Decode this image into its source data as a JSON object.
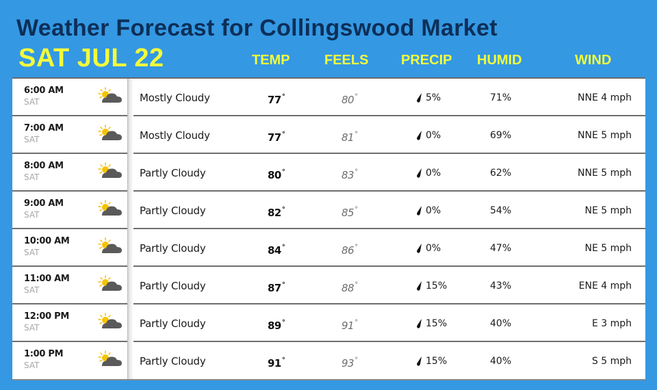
{
  "header": {
    "title": "Weather Forecast for Collingswood Market",
    "date": "SAT JUL 22"
  },
  "columns": {
    "temp": "TEMP",
    "feels": "FEELS",
    "precip": "PRECIP",
    "humid": "HUMID",
    "wind": "WIND"
  },
  "colors": {
    "background": "#3498e3",
    "title": "#0d2f57",
    "accent_yellow": "#f2fb3c"
  },
  "icons": {
    "mostly_cloudy": "mostly-cloudy-icon",
    "partly_cloudy": "partly-cloudy-icon",
    "precip": "raindrop-icon"
  },
  "rows": [
    {
      "time": "6:00 AM",
      "day": "SAT",
      "icon": "mostly-cloudy",
      "condition": "Mostly Cloudy",
      "temp": "77",
      "feels": "80",
      "precip": "5%",
      "humid": "71%",
      "wind": "NNE 4 mph"
    },
    {
      "time": "7:00 AM",
      "day": "SAT",
      "icon": "mostly-cloudy",
      "condition": "Mostly Cloudy",
      "temp": "77",
      "feels": "81",
      "precip": "0%",
      "humid": "69%",
      "wind": "NNE 5 mph"
    },
    {
      "time": "8:00 AM",
      "day": "SAT",
      "icon": "partly-cloudy",
      "condition": "Partly Cloudy",
      "temp": "80",
      "feels": "83",
      "precip": "0%",
      "humid": "62%",
      "wind": "NNE 5 mph"
    },
    {
      "time": "9:00 AM",
      "day": "SAT",
      "icon": "partly-cloudy",
      "condition": "Partly Cloudy",
      "temp": "82",
      "feels": "85",
      "precip": "0%",
      "humid": "54%",
      "wind": "NE 5 mph"
    },
    {
      "time": "10:00 AM",
      "day": "SAT",
      "icon": "partly-cloudy",
      "condition": "Partly Cloudy",
      "temp": "84",
      "feels": "86",
      "precip": "0%",
      "humid": "47%",
      "wind": "NE 5 mph"
    },
    {
      "time": "11:00 AM",
      "day": "SAT",
      "icon": "partly-cloudy",
      "condition": "Partly Cloudy",
      "temp": "87",
      "feels": "88",
      "precip": "15%",
      "humid": "43%",
      "wind": "ENE 4 mph"
    },
    {
      "time": "12:00 PM",
      "day": "SAT",
      "icon": "partly-cloudy",
      "condition": "Partly Cloudy",
      "temp": "89",
      "feels": "91",
      "precip": "15%",
      "humid": "40%",
      "wind": "E 3 mph"
    },
    {
      "time": "1:00 PM",
      "day": "SAT",
      "icon": "partly-cloudy",
      "condition": "Partly Cloudy",
      "temp": "91",
      "feels": "93",
      "precip": "15%",
      "humid": "40%",
      "wind": "S 5 mph"
    }
  ],
  "degree_symbol": "°"
}
